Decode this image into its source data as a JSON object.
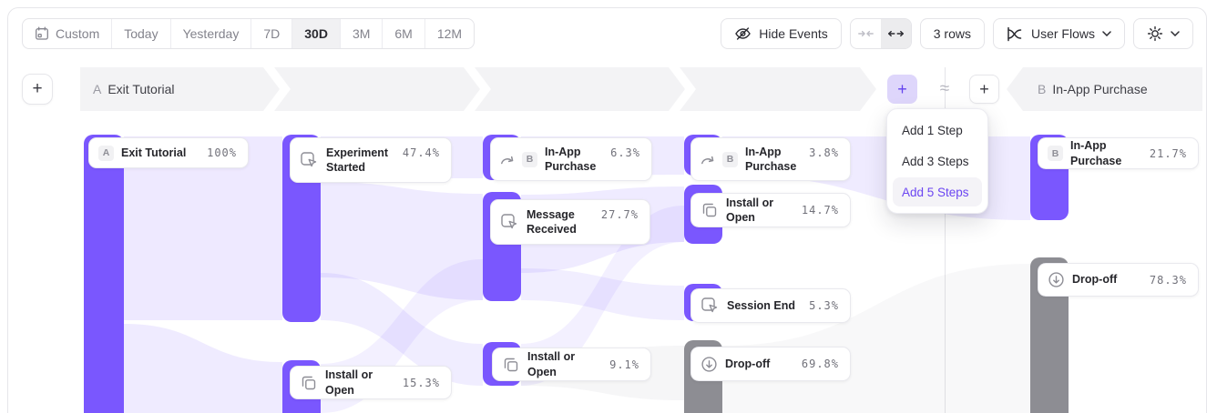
{
  "toolbar": {
    "date_ranges": [
      "Custom",
      "Today",
      "Yesterday",
      "7D",
      "30D",
      "3M",
      "6M",
      "12M"
    ],
    "selected_range": "30D",
    "hide_events_label": "Hide Events",
    "rows_label": "3 rows",
    "view_selector_label": "User Flows"
  },
  "flow_header": {
    "steps": [
      {
        "badge": "A",
        "label": "Exit Tutorial"
      },
      {
        "badge": "B",
        "label": "In-App Purchase"
      }
    ],
    "approx": "≈",
    "plus": "+"
  },
  "add_menu": {
    "items": [
      {
        "label": "Add 1 Step"
      },
      {
        "label": "Add 3 Steps"
      },
      {
        "label": "Add 5 Steps"
      }
    ],
    "highlighted": "Add 5 Steps"
  },
  "flow": {
    "nodes": [
      {
        "badge": "A",
        "label": "Exit Tutorial",
        "value": "100%",
        "tone": "purple"
      },
      {
        "icon": "click",
        "label": "Experiment Started",
        "value": "47.4%",
        "tone": "purple"
      },
      {
        "icon": "copy",
        "label": "Install or Open",
        "value": "15.3%",
        "tone": "purple"
      },
      {
        "icon": "skip",
        "badge": "B",
        "label": "In-App Purchase",
        "value": "6.3%",
        "tone": "purple"
      },
      {
        "icon": "click",
        "label": "Message Received",
        "value": "27.7%",
        "tone": "purple"
      },
      {
        "icon": "copy",
        "label": "Install or Open",
        "value": "9.1%",
        "tone": "purple"
      },
      {
        "icon": "skip",
        "badge": "B",
        "label": "In-App Purchase",
        "value": "3.8%",
        "tone": "purple"
      },
      {
        "icon": "copy",
        "label": "Install or Open",
        "value": "14.7%",
        "tone": "purple"
      },
      {
        "icon": "click",
        "label": "Session End",
        "value": "5.3%",
        "tone": "purple"
      },
      {
        "icon": "dropoff",
        "label": "Drop-off",
        "value": "69.8%",
        "tone": "gray"
      },
      {
        "badge": "B",
        "label": "In-App Purchase",
        "value": "21.7%",
        "tone": "purple"
      },
      {
        "icon": "dropoff",
        "label": "Drop-off",
        "value": "78.3%",
        "tone": "gray"
      }
    ]
  },
  "colors": {
    "accent_bar": "#7a57fe",
    "accent_text": "#6b46f2",
    "gray_bar": "#8d8d93",
    "band_bg": "#f3f3f5"
  }
}
